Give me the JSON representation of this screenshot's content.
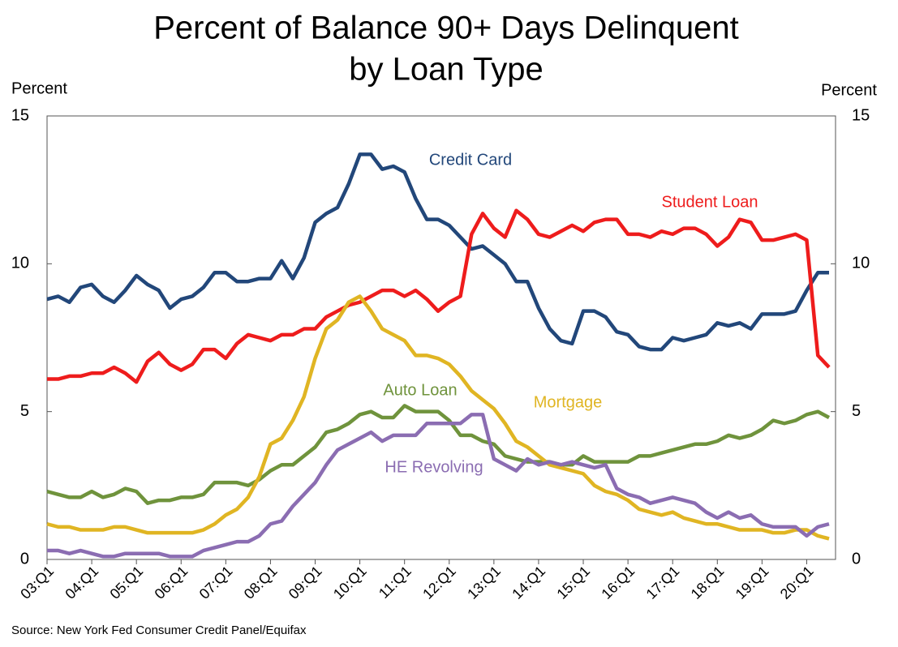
{
  "chart_data": {
    "type": "line",
    "title": [
      "Percent of Balance 90+ Days Delinquent",
      "by Loan Type"
    ],
    "y_label": "Percent",
    "y2_label": "Percent",
    "source": "Source: New York Fed Consumer Credit Panel/Equifax",
    "categories": [
      "03:Q1",
      null,
      null,
      null,
      "04:Q1",
      null,
      null,
      null,
      "05:Q1",
      null,
      null,
      null,
      "06:Q1",
      null,
      null,
      null,
      "07:Q1",
      null,
      null,
      null,
      "08:Q1",
      null,
      null,
      null,
      "09:Q1",
      null,
      null,
      null,
      "10:Q1",
      null,
      null,
      null,
      "11:Q1",
      null,
      null,
      null,
      "12:Q1",
      null,
      null,
      null,
      "13:Q1",
      null,
      null,
      null,
      "14:Q1",
      null,
      null,
      null,
      "15:Q1",
      null,
      null,
      null,
      "16:Q1",
      null,
      null,
      null,
      "17:Q1",
      null,
      null,
      null,
      "18:Q1",
      null,
      null,
      null,
      "19:Q1",
      null,
      null,
      null,
      "20:Q1",
      null,
      null
    ],
    "ylim": [
      0,
      15
    ],
    "yticks": [
      0,
      5,
      10,
      15
    ],
    "y2lim": [
      0,
      15
    ],
    "y2ticks": [
      0,
      5,
      10,
      15
    ],
    "series": [
      {
        "name": "Credit Card",
        "color": "#22477a",
        "values": [
          8.8,
          8.9,
          8.7,
          9.2,
          9.3,
          8.9,
          8.7,
          9.1,
          9.6,
          9.3,
          9.1,
          8.5,
          8.8,
          8.9,
          9.2,
          9.7,
          9.7,
          9.4,
          9.4,
          9.5,
          9.5,
          10.1,
          9.5,
          10.2,
          11.4,
          11.7,
          11.9,
          12.7,
          13.7,
          13.7,
          13.2,
          13.3,
          13.1,
          12.2,
          11.5,
          11.5,
          11.3,
          10.9,
          10.5,
          10.6,
          10.3,
          10.0,
          9.4,
          9.4,
          8.5,
          7.8,
          7.4,
          7.3,
          8.4,
          8.4,
          8.2,
          7.7,
          7.6,
          7.2,
          7.1,
          7.1,
          7.5,
          7.4,
          7.5,
          7.6,
          8.0,
          7.9,
          8.0,
          7.8,
          8.3,
          8.3,
          8.3,
          8.4,
          9.1,
          9.7,
          9.7
        ]
      },
      {
        "name": "Student Loan",
        "color": "#ee1c1c",
        "values": [
          6.1,
          6.1,
          6.2,
          6.2,
          6.3,
          6.3,
          6.5,
          6.3,
          6.0,
          6.7,
          7.0,
          6.6,
          6.4,
          6.6,
          7.1,
          7.1,
          6.8,
          7.3,
          7.6,
          7.5,
          7.4,
          7.6,
          7.6,
          7.8,
          7.8,
          8.2,
          8.4,
          8.6,
          8.7,
          8.9,
          9.1,
          9.1,
          8.9,
          9.1,
          8.8,
          8.4,
          8.7,
          8.9,
          11.0,
          11.7,
          11.2,
          10.9,
          11.8,
          11.5,
          11.0,
          10.9,
          11.1,
          11.3,
          11.1,
          11.4,
          11.5,
          11.5,
          11.0,
          11.0,
          10.9,
          11.1,
          11.0,
          11.2,
          11.2,
          11.0,
          10.6,
          10.9,
          11.5,
          11.4,
          10.8,
          10.8,
          10.9,
          11.0,
          10.8,
          6.9,
          6.5
        ]
      },
      {
        "name": "Auto Loan",
        "color": "#6f933c",
        "values": [
          2.3,
          2.2,
          2.1,
          2.1,
          2.3,
          2.1,
          2.2,
          2.4,
          2.3,
          1.9,
          2.0,
          2.0,
          2.1,
          2.1,
          2.2,
          2.6,
          2.6,
          2.6,
          2.5,
          2.7,
          3.0,
          3.2,
          3.2,
          3.5,
          3.8,
          4.3,
          4.4,
          4.6,
          4.9,
          5.0,
          4.8,
          4.8,
          5.2,
          5.0,
          5.0,
          5.0,
          4.7,
          4.2,
          4.2,
          4.0,
          3.9,
          3.5,
          3.4,
          3.3,
          3.3,
          3.3,
          3.2,
          3.2,
          3.5,
          3.3,
          3.3,
          3.3,
          3.3,
          3.5,
          3.5,
          3.6,
          3.7,
          3.8,
          3.9,
          3.9,
          4.0,
          4.2,
          4.1,
          4.2,
          4.4,
          4.7,
          4.6,
          4.7,
          4.9,
          5.0,
          4.8
        ]
      },
      {
        "name": "Mortgage",
        "color": "#e0b523",
        "values": [
          1.2,
          1.1,
          1.1,
          1.0,
          1.0,
          1.0,
          1.1,
          1.1,
          1.0,
          0.9,
          0.9,
          0.9,
          0.9,
          0.9,
          1.0,
          1.2,
          1.5,
          1.7,
          2.1,
          2.8,
          3.9,
          4.1,
          4.7,
          5.5,
          6.8,
          7.8,
          8.1,
          8.7,
          8.9,
          8.4,
          7.8,
          7.6,
          7.4,
          6.9,
          6.9,
          6.8,
          6.6,
          6.2,
          5.7,
          5.4,
          5.1,
          4.6,
          4.0,
          3.8,
          3.5,
          3.2,
          3.1,
          3.0,
          2.9,
          2.5,
          2.3,
          2.2,
          2.0,
          1.7,
          1.6,
          1.5,
          1.6,
          1.4,
          1.3,
          1.2,
          1.2,
          1.1,
          1.0,
          1.0,
          1.0,
          0.9,
          0.9,
          1.0,
          1.0,
          0.8,
          0.7
        ]
      },
      {
        "name": "HE Revolving",
        "color": "#8b6db2",
        "values": [
          0.3,
          0.3,
          0.2,
          0.3,
          0.2,
          0.1,
          0.1,
          0.2,
          0.2,
          0.2,
          0.2,
          0.1,
          0.1,
          0.1,
          0.3,
          0.4,
          0.5,
          0.6,
          0.6,
          0.8,
          1.2,
          1.3,
          1.8,
          2.2,
          2.6,
          3.2,
          3.7,
          3.9,
          4.1,
          4.3,
          4.0,
          4.2,
          4.2,
          4.2,
          4.6,
          4.6,
          4.6,
          4.6,
          4.9,
          4.9,
          3.4,
          3.2,
          3.0,
          3.4,
          3.2,
          3.3,
          3.2,
          3.3,
          3.2,
          3.1,
          3.2,
          2.4,
          2.2,
          2.1,
          1.9,
          2.0,
          2.1,
          2.0,
          1.9,
          1.6,
          1.4,
          1.6,
          1.4,
          1.5,
          1.2,
          1.1,
          1.1,
          1.1,
          0.8,
          1.1,
          1.2
        ]
      }
    ]
  }
}
